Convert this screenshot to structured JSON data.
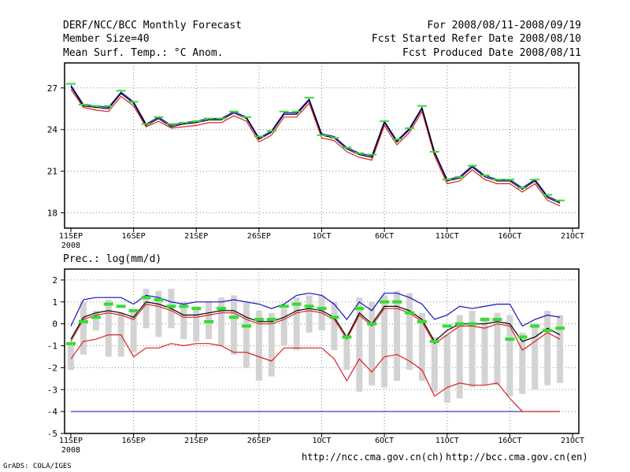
{
  "header": {
    "title": "DERF/NCC/BCC Monthly Forecast",
    "member_size": "Member Size=40",
    "variable": "Mean Surf. Temp.: °C Anom.",
    "forecast_period": "For 2008/08/11-2008/09/19",
    "started_date": "Fcst Started Refer Date 2008/08/10",
    "produced_date": "Fcst Produced Date 2008/08/11"
  },
  "footer": {
    "url_ncc": "http://ncc.cma.gov.cn(ch)",
    "url_bcc": "http://bcc.cma.gov.cn(en)",
    "software": "GrADS: COLA/IGES"
  },
  "colors": {
    "green": "#33dd33",
    "ensemble_blue": "#1010c0",
    "ensemble_red": "#dd2020",
    "mean_black": "#000000",
    "box_gray": "#d3d3d3",
    "grid": "#888888"
  },
  "chart_data": [
    {
      "type": "line",
      "title": "Mean Surf. Temp.: °C Anom.",
      "xlabel": "",
      "ylabel": "",
      "x_ticks": [
        "11SEP",
        "16SEP",
        "21SEP",
        "26SEP",
        "1OCT",
        "6OCT",
        "11OCT",
        "16OCT",
        "21OCT"
      ],
      "x_tick_days": [
        0,
        5,
        10,
        15,
        20,
        25,
        30,
        35,
        40
      ],
      "x_sub_label": "2008",
      "y_ticks": [
        18,
        21,
        24,
        27
      ],
      "ylim": [
        16.9,
        28.8
      ],
      "xlim": [
        -0.5,
        40.5
      ],
      "grid": true,
      "days": [
        0,
        1,
        2,
        3,
        4,
        5,
        6,
        7,
        8,
        9,
        10,
        11,
        12,
        13,
        14,
        15,
        16,
        17,
        18,
        19,
        20,
        21,
        22,
        23,
        24,
        25,
        26,
        27,
        28,
        29,
        30,
        31,
        32,
        33,
        34,
        35,
        36,
        37,
        38,
        39
      ],
      "series": [
        {
          "name": "ensemble_max",
          "color": "blue",
          "values": [
            27.2,
            25.8,
            25.7,
            25.6,
            26.7,
            26.0,
            24.4,
            24.9,
            24.3,
            24.5,
            24.6,
            24.8,
            24.8,
            25.3,
            24.9,
            23.4,
            23.9,
            25.2,
            25.2,
            26.2,
            23.7,
            23.5,
            22.7,
            22.3,
            22.1,
            24.6,
            23.2,
            24.1,
            25.6,
            22.4,
            20.4,
            20.6,
            21.4,
            20.7,
            20.4,
            20.4,
            19.8,
            20.4,
            19.2,
            18.8
          ]
        },
        {
          "name": "ensemble_mean",
          "color": "black",
          "values": [
            27.1,
            25.7,
            25.6,
            25.5,
            26.6,
            25.9,
            24.3,
            24.8,
            24.2,
            24.4,
            24.5,
            24.7,
            24.7,
            25.2,
            24.8,
            23.3,
            23.8,
            25.1,
            25.1,
            26.1,
            23.6,
            23.4,
            22.6,
            22.2,
            22.0,
            24.5,
            23.1,
            24.0,
            25.5,
            22.3,
            20.3,
            20.5,
            21.3,
            20.6,
            20.3,
            20.3,
            19.7,
            20.3,
            19.1,
            18.7
          ]
        },
        {
          "name": "ensemble_min",
          "color": "red",
          "values": [
            26.9,
            25.6,
            25.4,
            25.3,
            26.4,
            25.7,
            24.2,
            24.6,
            24.1,
            24.2,
            24.3,
            24.5,
            24.5,
            25.0,
            24.6,
            23.1,
            23.6,
            24.9,
            24.9,
            25.9,
            23.4,
            23.2,
            22.4,
            22.0,
            21.8,
            24.3,
            22.9,
            23.8,
            25.3,
            22.1,
            20.1,
            20.3,
            21.1,
            20.4,
            20.1,
            20.1,
            19.5,
            20.1,
            18.9,
            18.5
          ]
        },
        {
          "name": "observed",
          "color": "green",
          "marker": "dash",
          "values": [
            27.3,
            25.8,
            25.7,
            25.7,
            26.8,
            26.0,
            24.4,
            24.9,
            24.4,
            24.5,
            24.6,
            24.8,
            24.8,
            25.3,
            24.9,
            23.5,
            23.9,
            25.3,
            25.3,
            26.3,
            23.6,
            23.4,
            22.7,
            22.3,
            22.2,
            24.6,
            23.3,
            24.1,
            25.7,
            22.4,
            20.4,
            20.6,
            21.4,
            20.7,
            20.4,
            20.4,
            19.8,
            20.4,
            19.3,
            18.9
          ]
        }
      ]
    },
    {
      "type": "box",
      "title": "Prec.: log(mm/d)",
      "xlabel": "",
      "ylabel": "",
      "x_ticks": [
        "11SEP",
        "16SEP",
        "21SEP",
        "26SEP",
        "1OCT",
        "6OCT",
        "11OCT",
        "16OCT",
        "21OCT"
      ],
      "x_tick_days": [
        0,
        5,
        10,
        15,
        20,
        25,
        30,
        35,
        40
      ],
      "x_sub_label": "2008",
      "y_ticks": [
        -5,
        -4,
        -3,
        -2,
        -1,
        0,
        1,
        2
      ],
      "ylim": [
        -5,
        2.5
      ],
      "xlim": [
        -0.5,
        40.5
      ],
      "grid": true,
      "days": [
        0,
        1,
        2,
        3,
        4,
        5,
        6,
        7,
        8,
        9,
        10,
        11,
        12,
        13,
        14,
        15,
        16,
        17,
        18,
        19,
        20,
        21,
        22,
        23,
        24,
        25,
        26,
        27,
        28,
        29,
        30,
        31,
        32,
        33,
        34,
        35,
        36,
        37,
        38,
        39
      ],
      "series": [
        {
          "name": "box_top",
          "color": "gray",
          "values": [
            -0.9,
            1.0,
            0.6,
            1.1,
            0.5,
            0.6,
            1.6,
            1.5,
            1.6,
            1.0,
            0.8,
            1.0,
            1.2,
            1.3,
            1.0,
            0.6,
            0.5,
            0.7,
            1.2,
            1.3,
            1.3,
            1.0,
            -0.6,
            1.2,
            1.0,
            1.3,
            1.5,
            1.4,
            0.5,
            -0.6,
            -0.5,
            0.4,
            0.6,
            0.3,
            0.5,
            0.4,
            -0.4,
            0.0,
            0.6,
            0.4
          ]
        },
        {
          "name": "box_bottom",
          "color": "gray",
          "values": [
            -2.1,
            -1.4,
            -0.3,
            -1.5,
            -1.5,
            -1.3,
            -0.2,
            -0.6,
            -0.2,
            -0.7,
            -0.8,
            -0.7,
            -1.0,
            -1.4,
            -2.0,
            -2.6,
            -2.4,
            -1.0,
            -1.2,
            -0.4,
            -0.3,
            -1.2,
            -2.1,
            -3.1,
            -2.8,
            -2.9,
            -2.6,
            -2.1,
            -2.6,
            -3.1,
            -3.6,
            -3.4,
            -2.9,
            -2.8,
            -2.8,
            -3.3,
            -3.2,
            -3.0,
            -2.8,
            -2.7
          ]
        },
        {
          "name": "ensemble_max",
          "color": "blue",
          "values": [
            -0.1,
            1.1,
            1.2,
            1.2,
            1.2,
            0.9,
            1.3,
            1.2,
            1.0,
            0.9,
            1.0,
            1.0,
            1.0,
            1.1,
            1.0,
            0.9,
            0.7,
            0.9,
            1.3,
            1.4,
            1.3,
            0.9,
            0.2,
            1.0,
            0.6,
            1.4,
            1.4,
            1.2,
            0.9,
            0.2,
            0.4,
            0.8,
            0.7,
            0.8,
            0.9,
            0.9,
            -0.1,
            0.2,
            0.4,
            0.3
          ]
        },
        {
          "name": "ensemble_mean",
          "color": "black",
          "values": [
            -0.7,
            0.3,
            0.5,
            0.6,
            0.5,
            0.3,
            1.0,
            0.9,
            0.7,
            0.4,
            0.4,
            0.5,
            0.6,
            0.6,
            0.3,
            0.1,
            0.1,
            0.3,
            0.6,
            0.7,
            0.6,
            0.3,
            -0.6,
            0.5,
            0.0,
            0.8,
            0.8,
            0.6,
            0.2,
            -0.8,
            -0.3,
            0.0,
            0.0,
            0.0,
            0.1,
            0.0,
            -0.8,
            -0.6,
            -0.2,
            -0.5
          ]
        },
        {
          "name": "ensemble_upper_red",
          "color": "red",
          "values": [
            -0.8,
            0.2,
            0.4,
            0.5,
            0.4,
            0.2,
            0.9,
            0.8,
            0.6,
            0.3,
            0.3,
            0.4,
            0.5,
            0.5,
            0.2,
            0.0,
            0.0,
            0.2,
            0.5,
            0.6,
            0.5,
            0.2,
            -0.7,
            0.4,
            -0.1,
            0.7,
            0.7,
            0.5,
            0.1,
            -0.9,
            -0.5,
            -0.1,
            -0.1,
            -0.2,
            0.0,
            -0.1,
            -1.2,
            -0.8,
            -0.4,
            -0.7
          ]
        },
        {
          "name": "ensemble_min",
          "color": "red",
          "values": [
            -1.6,
            -0.8,
            -0.7,
            -0.5,
            -0.5,
            -1.5,
            -1.1,
            -1.1,
            -0.9,
            -1.0,
            -0.9,
            -0.9,
            -1.0,
            -1.3,
            -1.3,
            -1.5,
            -1.7,
            -1.1,
            -1.1,
            -1.1,
            -1.1,
            -1.6,
            -2.6,
            -1.6,
            -2.2,
            -1.5,
            -1.4,
            -1.7,
            -2.1,
            -3.3,
            -2.9,
            -2.7,
            -2.8,
            -2.8,
            -2.7,
            -3.4,
            -4.0,
            -4.0,
            -4.0,
            -4.0
          ]
        },
        {
          "name": "observed",
          "color": "green",
          "marker": "dash",
          "values": [
            -0.9,
            0.1,
            0.3,
            0.9,
            0.8,
            0.6,
            1.2,
            1.1,
            0.8,
            0.8,
            0.7,
            0.1,
            0.7,
            0.3,
            -0.1,
            0.2,
            0.2,
            0.8,
            0.9,
            0.8,
            0.7,
            0.3,
            -0.6,
            0.7,
            0.0,
            1.0,
            1.0,
            0.5,
            0.1,
            -0.8,
            -0.1,
            0.0,
            0.0,
            0.2,
            0.2,
            -0.7,
            -0.6,
            -0.1,
            -0.3,
            -0.2
          ]
        },
        {
          "name": "floor",
          "color": "blue",
          "constant": -4.0
        }
      ]
    }
  ]
}
